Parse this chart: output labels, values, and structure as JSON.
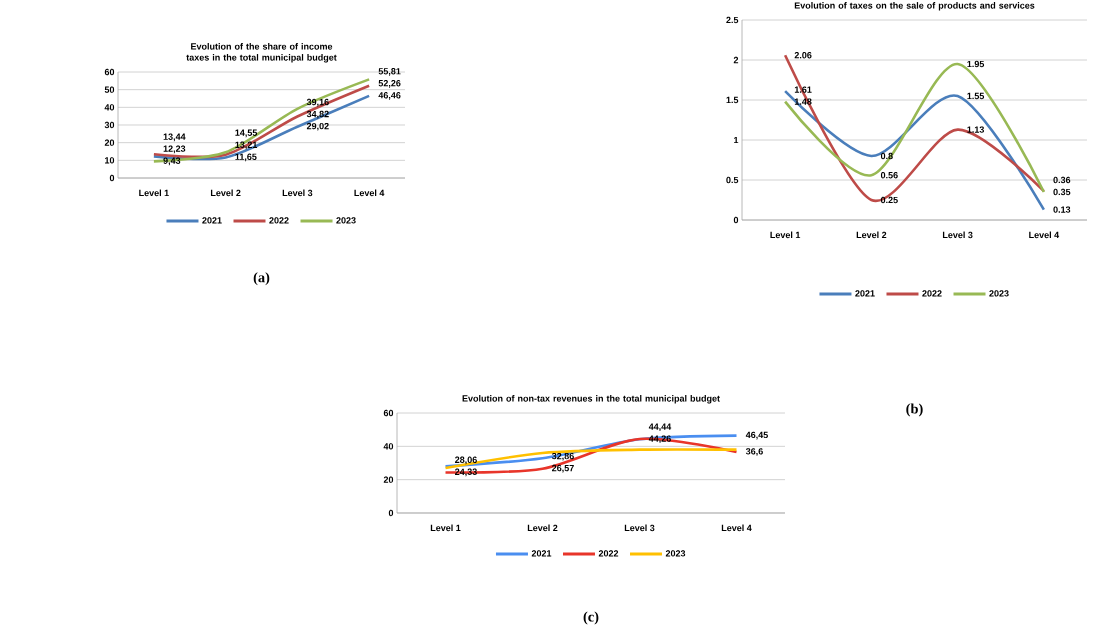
{
  "chart_data": [
    {
      "type": "line",
      "title": "Evolution of the share of income taxes in the total municipal budget",
      "categories": [
        "Level 1",
        "Level 2",
        "Level 3",
        "Level 4"
      ],
      "series": [
        {
          "name": "2021",
          "color": "#4a7ebb",
          "values": [
            12.23,
            11.65,
            29.02,
            46.46
          ],
          "value_labels": [
            "12,23",
            "11,65",
            "29,02",
            "46,46"
          ]
        },
        {
          "name": "2022",
          "color": "#be4b48",
          "values": [
            13.44,
            13.21,
            34.82,
            52.26
          ],
          "value_labels": [
            "13,44",
            "13,21",
            "34,82",
            "52,26"
          ]
        },
        {
          "name": "2023",
          "color": "#98b954",
          "values": [
            9.43,
            14.55,
            39.16,
            55.81
          ],
          "value_labels": [
            "9,43",
            "14,55",
            "39,16",
            "55,81"
          ]
        }
      ],
      "ylim": [
        0,
        60
      ],
      "yticks": [
        0,
        10,
        20,
        30,
        40,
        50,
        60
      ],
      "grid": "y",
      "legend": "bottom",
      "marker": "none",
      "line_style": "solid",
      "annotations": [
        "(a)"
      ]
    },
    {
      "type": "line",
      "title": "Evolution of taxes on the sale of products and services",
      "categories": [
        "Level 1",
        "Level 2",
        "Level 3",
        "Level 4"
      ],
      "series": [
        {
          "name": "2021",
          "color": "#4a7ebb",
          "values": [
            1.61,
            0.8,
            1.55,
            0.13
          ],
          "value_labels": [
            "1.61",
            "0.8",
            "1.55",
            "0.13"
          ]
        },
        {
          "name": "2022",
          "color": "#be4b48",
          "values": [
            2.06,
            0.25,
            1.13,
            0.36
          ],
          "value_labels": [
            "2.06",
            "0.25",
            "1.13",
            "0.36"
          ]
        },
        {
          "name": "2023",
          "color": "#98b954",
          "values": [
            1.48,
            0.56,
            1.95,
            0.35
          ],
          "value_labels": [
            "1.48",
            "0.56",
            "1.95",
            "0.35"
          ]
        }
      ],
      "ylim": [
        0,
        2.5
      ],
      "yticks": [
        0,
        0.5,
        1,
        1.5,
        2,
        2.5
      ],
      "grid": "y",
      "legend": "bottom",
      "marker": "none",
      "line_style": "solid",
      "annotations": [
        "(b)"
      ]
    },
    {
      "type": "line",
      "title": "Evolution of non-tax revenues in the total municipal budget",
      "categories": [
        "Level 1",
        "Level 2",
        "Level 3",
        "Level 4"
      ],
      "series": [
        {
          "name": "2021",
          "color": "#4a8ef0",
          "values": [
            28.06,
            32.86,
            44.26,
            46.45
          ],
          "value_labels": [
            "28,06",
            "32,86",
            "44,26",
            "46,45"
          ]
        },
        {
          "name": "2022",
          "color": "#e8352a",
          "values": [
            24.33,
            26.57,
            44.44,
            36.6
          ],
          "value_labels": [
            "24,33",
            "26,57",
            "44,44",
            "36,6"
          ]
        },
        {
          "name": "2023",
          "color": "#ffc000",
          "values": [
            27,
            36,
            38,
            38
          ]
        }
      ],
      "ylim": [
        0,
        60
      ],
      "yticks": [
        0,
        20,
        40,
        60
      ],
      "grid": "y",
      "legend": "bottom",
      "marker": "none",
      "line_style": "solid",
      "annotations": [
        "(c)"
      ]
    }
  ]
}
